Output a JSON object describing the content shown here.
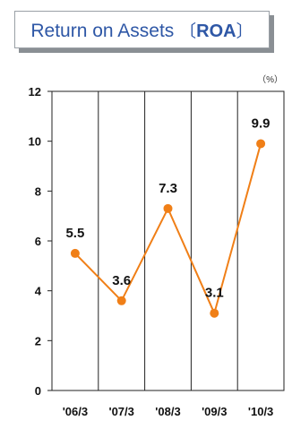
{
  "chart_data": {
    "type": "line",
    "title_main": "Return on Assets ",
    "title_open": "〔",
    "title_abbr": "ROA",
    "title_close": "〕",
    "unit": "（%）",
    "categories": [
      "'06/3",
      "'07/3",
      "'08/3",
      "'09/3",
      "'10/3"
    ],
    "values": [
      5.5,
      3.6,
      7.3,
      3.1,
      9.9
    ],
    "data_labels": [
      "5.5",
      "3.6",
      "7.3",
      "3.1",
      "9.9"
    ],
    "yticks": [
      "0",
      "2",
      "4",
      "6",
      "8",
      "10",
      "12"
    ],
    "ylim": [
      0,
      12
    ],
    "xlabel": "",
    "ylabel": "",
    "grid": "vertical lines between categories",
    "colors": {
      "line": "#f07f17",
      "marker": "#f07f17",
      "title": "#2e57a6"
    }
  }
}
